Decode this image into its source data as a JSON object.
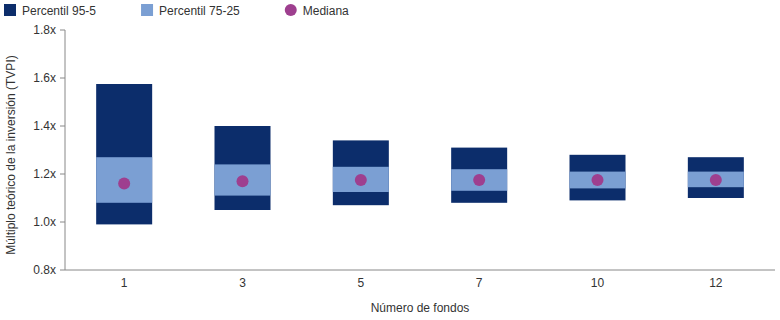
{
  "chart_data": {
    "type": "range",
    "y_label": "Múltiplo teórico de la inversión (TVPI)",
    "x_label": "Número de fondos",
    "categories": [
      "1",
      "3",
      "5",
      "7",
      "10",
      "12"
    ],
    "ylim": [
      0.8,
      1.8
    ],
    "yticks": [
      {
        "value": 0.8,
        "label": "0.8x"
      },
      {
        "value": 1.0,
        "label": "1.0x"
      },
      {
        "value": 1.2,
        "label": "1.2x"
      },
      {
        "value": 1.4,
        "label": "1.4x"
      },
      {
        "value": 1.6,
        "label": "1.6x"
      },
      {
        "value": 1.8,
        "label": "1.8x"
      }
    ],
    "grid": false,
    "legend": "top",
    "series": [
      {
        "name": "Percentil 95-5",
        "type": "range",
        "color": "#0c2d6b",
        "values": [
          [
            0.99,
            1.575
          ],
          [
            1.05,
            1.4
          ],
          [
            1.07,
            1.34
          ],
          [
            1.08,
            1.31
          ],
          [
            1.09,
            1.28
          ],
          [
            1.1,
            1.27
          ]
        ]
      },
      {
        "name": "Percentil 75-25",
        "type": "range",
        "color": "#7b9fd3",
        "values": [
          [
            1.08,
            1.27
          ],
          [
            1.11,
            1.24
          ],
          [
            1.125,
            1.23
          ],
          [
            1.13,
            1.22
          ],
          [
            1.14,
            1.21
          ],
          [
            1.145,
            1.21
          ]
        ]
      },
      {
        "name": "Mediana",
        "type": "scatter",
        "marker": "circle",
        "color": "#9e3f8f",
        "values": [
          1.16,
          1.17,
          1.175,
          1.175,
          1.175,
          1.175
        ]
      }
    ]
  }
}
